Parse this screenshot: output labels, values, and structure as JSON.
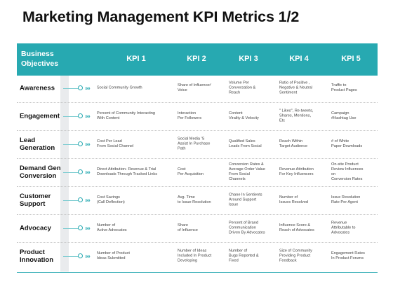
{
  "title": "Marketing Management KPI Metrics 1/2",
  "colors": {
    "accent": "#27a9b1",
    "stripe": "#e9ebed",
    "text": "#111111"
  },
  "header": {
    "objectives_label": "Business\nObjectives",
    "kpis": [
      "KPI 1",
      "KPI 2",
      "KPI 3",
      "KPI 4",
      "KPI 5"
    ]
  },
  "row_icon": "chevron-right-icon",
  "rows": [
    {
      "objective": "Awareness",
      "cells": [
        "Social Community Growth",
        "Share of Influencer'\nVoice",
        "Volume Per\nConversation &\nReach",
        "Ratio of Positive ,\nNegative & Neutral\nSentiment",
        "Traffic to\nProduct Pages"
      ]
    },
    {
      "objective": "Engagement",
      "cells": [
        "Percent of Community Interacting\nWith Content",
        "Interaction\nPer Followers",
        "Content\nVirality & Velocity",
        "\" Likes\", Re-tweets,\nShares, Mentions,\nEtc",
        "Campaign\n#Hashtag Use"
      ]
    },
    {
      "objective": "Lead\nGeneration",
      "cells": [
        "Cost Per Lead\nFrom Social Channel",
        "Social Media 'S\nAssist In Purchase\nPath",
        "Qualified Sales\nLeads From Social",
        "Reach Within\nTarget Audience",
        "# of White\nPaper Downloads"
      ]
    },
    {
      "objective": "Demand Gen\nConversion",
      "cells": [
        "Direct Attribution- Revenue & Trial\nDownloads Through Tracked Links",
        "Cost\nPer Acquisition",
        "Conversion Rates &\nAverage Order Value\nFrom Social\nChannels",
        "Revenue Attribution\nFor Key Influencers",
        "On-site Product\nReview Influences\non\nConversion Rates"
      ]
    },
    {
      "objective": "Customer\nSupport",
      "cells": [
        "Cost Savings\n(Call Deflection)",
        "Avg. Time\nto Issue Resolution",
        "Chane In Sentients\nAround Support\nIssue",
        "Number of\nIssues Resolved",
        "Issue Resolution\nRate Per Agent"
      ]
    },
    {
      "objective": "Advocacy",
      "cells": [
        "Number of\nActive Advocates",
        "Share\nof Influence",
        "Percent of Brand\nCommunication\nDriven By Advocates",
        "Influence Score &\nReach of Advocates",
        "Revenue\nAttributable to\nAdvocates"
      ]
    },
    {
      "objective": "Product\nInnovation",
      "cells": [
        "Number of Product\nIdeas Submitted",
        "Number of Ideas\nIncluded In Product\nDeveloping",
        "Number of\nBugs Reported &\nFixed",
        "Size of Community\nProviding Product\nFeedback",
        "Engagement Rates\nIn Product Forums"
      ]
    }
  ]
}
